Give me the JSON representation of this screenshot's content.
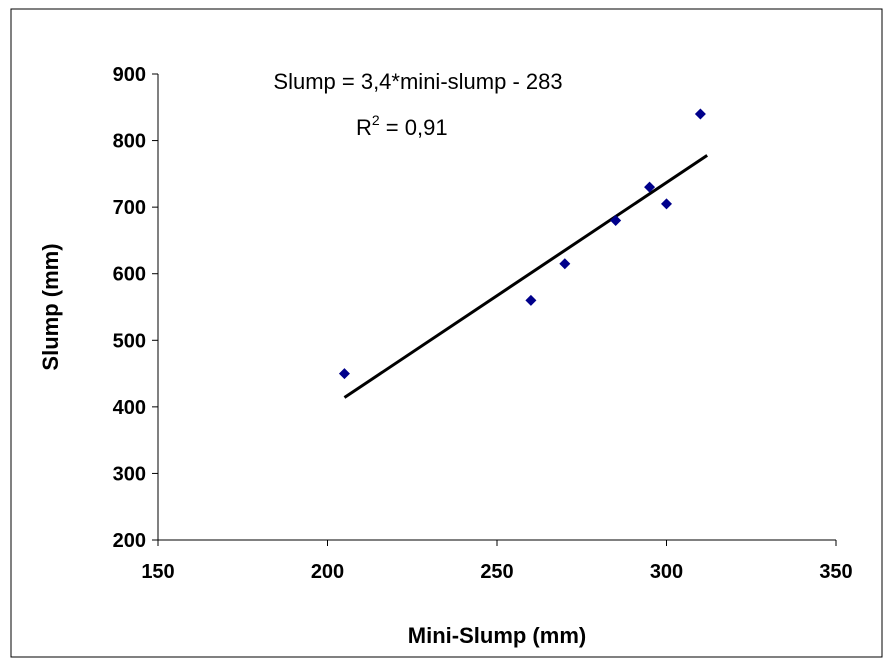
{
  "chart_data": {
    "type": "scatter",
    "title": "",
    "xlabel": "Mini-Slump (mm)",
    "ylabel": "Slump (mm)",
    "xlim": [
      150,
      350
    ],
    "ylim": [
      200,
      900
    ],
    "xticks": [
      150,
      200,
      250,
      300,
      350
    ],
    "yticks": [
      200,
      300,
      400,
      500,
      600,
      700,
      800,
      900
    ],
    "grid": false,
    "legend": "none",
    "series": [
      {
        "color": "#00008b",
        "marker": "diamond",
        "points": [
          {
            "x": 205,
            "y": 450
          },
          {
            "x": 260,
            "y": 560
          },
          {
            "x": 270,
            "y": 615
          },
          {
            "x": 285,
            "y": 680
          },
          {
            "x": 295,
            "y": 730
          },
          {
            "x": 300,
            "y": 705
          },
          {
            "x": 310,
            "y": 840
          }
        ]
      }
    ],
    "trendline": {
      "color": "#000000",
      "slope": 3.4,
      "intercept": -283,
      "x_range": [
        205,
        312
      ]
    },
    "annotations": {
      "equation": "Slump = 3,4*mini-slump - 283",
      "r2_prefix": "R",
      "r2_sup": "2",
      "r2_value": " = 0,91"
    }
  }
}
